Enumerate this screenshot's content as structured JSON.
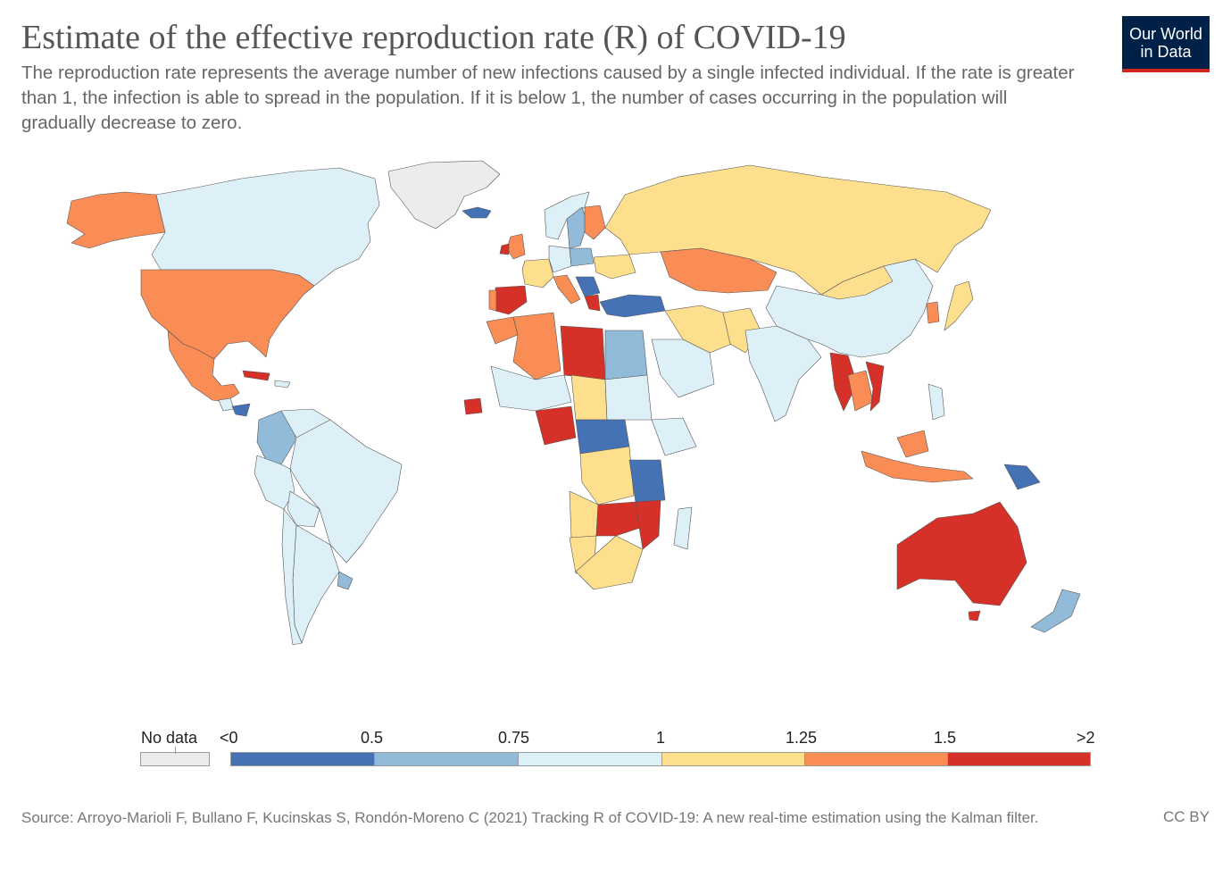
{
  "header": {
    "title": "Estimate of the effective reproduction rate (R) of COVID-19",
    "subtitle": "The reproduction rate represents the average number of new infections caused by a single infected individual. If the rate is greater than 1, the infection is able to spread in the population. If it is below 1, the number of cases occurring in the population will gradually decrease to zero."
  },
  "logo": {
    "line1": "Our World",
    "line2": "in Data"
  },
  "colors": {
    "no_data": "#ececec",
    "bin_0": "#4472b5",
    "bin_1": "#92bbd9",
    "bin_2": "#ddf0f8",
    "bin_3": "#fddf8e",
    "bin_4": "#f98d55",
    "bin_5": "#d63128",
    "border": "#555555"
  },
  "legend": {
    "no_data_label": "No data",
    "labels": [
      "<0",
      "0.5",
      "0.75",
      "1",
      "1.25",
      "1.5",
      ">2"
    ]
  },
  "footer": {
    "source": "Source: Arroyo-Marioli F, Bullano F, Kucinskas S, Rondón-Moreno C (2021) Tracking R of COVID-19: A new real-time estimation using the Kalman filter.",
    "license": "CC BY"
  }
}
